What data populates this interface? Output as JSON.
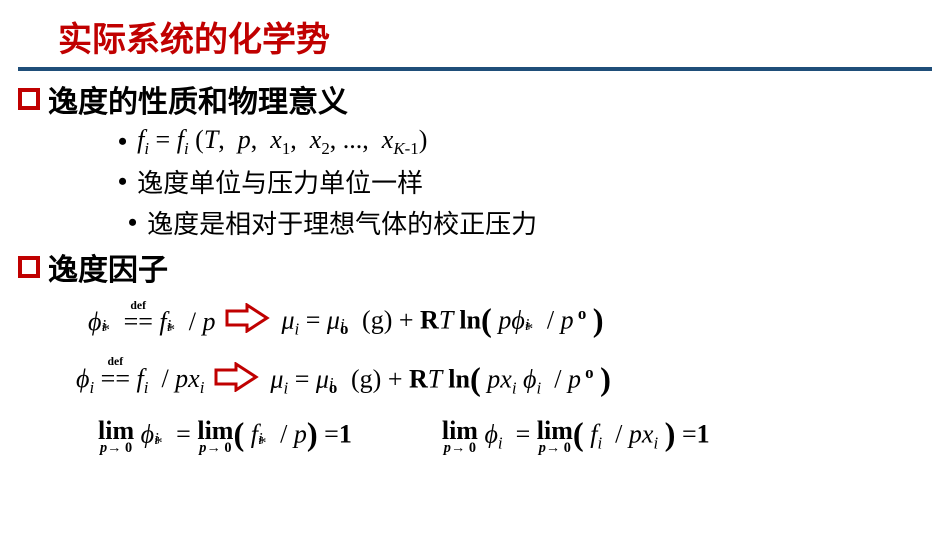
{
  "colors": {
    "title": "#c00000",
    "rule": "#1f4e79",
    "bullet_border": "#c00000",
    "text": "#000000",
    "arrow_stroke": "#c00000"
  },
  "title": "实际系统的化学势",
  "sections": [
    {
      "label": "逸度的性质和物理意义"
    },
    {
      "label": "逸度因子"
    }
  ],
  "items": [
    {
      "text_html": "<span class='math'>f<sub>i</sub> <span class='rm'>=</span> f<sub>i</sub> <span class='rm'>(</span>T<span class='rm'>,</span>&nbsp; p<span class='rm'>,</span>&nbsp; x<sub><span class='rm'>1</span></sub><span class='rm'>,</span>&nbsp; x<sub><span class='rm'>2</span></sub><span class='rm'>,</span>&nbsp;<span class='rm'>...,</span>&nbsp; x<sub>K<span class='rm'>-1</span></sub><span class='rm'>)</span></span>"
    },
    {
      "text": "逸度单位与压力单位一样"
    },
    {
      "text": "逸度是相对于理想气体的校正压力"
    }
  ],
  "formulas": {
    "row1_left": "ϕ<span class='subsup'><sub>i</sub><sup class='rm'>*</sup></span> <span class='eqdef'><span class='deflabel'>def</span><span class='rm'>==</span></span> f<span class='subsup'><sub>i</sub><sup class='rm'>*</sup></span> <span class='rm'>/</span> p",
    "row1_right": "μ<sub>i</sub> <span class='rm'>=</span> μ<span class='subsup'><sub>i</sub><sup class='supo'>o</sup></span> <span class='rm'>(g) +</span> <span class='rm' style='font-weight:bold'>R</span>T <span class='rm' style='font-weight:bold'>ln</span><span class='big'>(</span> pϕ<span class='subsup'><sub>i</sub><sup class='rm'>*</sup></span> <span class='rm'>/</span> p<sup class='supo'>&nbsp;o</sup> <span class='big'>)</span>",
    "row2_left": "ϕ<sub>i</sub> <span class='eqdef'><span class='deflabel'>def</span><span class='rm'>==</span></span> f<sub>i</sub>&nbsp; <span class='rm'>/</span> px<sub>i</sub>",
    "row2_right": "μ<sub>i</sub> <span class='rm'>=</span> μ<span class='subsup'><sub>i</sub><sup class='supo'>o</sup></span> <span class='rm'>(g) +</span> <span class='rm' style='font-weight:bold'>R</span>T <span class='rm' style='font-weight:bold'>ln</span><span class='big'>(</span> px<sub>i</sub> ϕ<sub>i</sub>&nbsp; <span class='rm'>/</span> p<sup class='supo'>&nbsp;o</sup> <span class='big'>)</span>",
    "lim1": "<span class='lim'><span class='top'>lim</span><span class='bot'><i>p</i>→ 0</span></span> ϕ<span class='subsup'><sub>i</sub><sup class='rm'>*</sup></span> <span class='rm'>=</span> <span class='lim'><span class='top'>lim</span><span class='bot'><i>p</i>→ 0</span></span><span class='big'>(</span> f<span class='subsup'><sub>i</sub><sup class='rm'>*</sup></span> <span class='rm'>/</span> p<span class='big'>)</span> <span class='rm'>=</span><span class='rm' style='font-weight:bold'>1</span>",
    "lim2": "<span class='lim'><span class='top'>lim</span><span class='bot'><i>p</i>→ 0</span></span> ϕ<sub>i</sub>&nbsp; <span class='rm'>=</span> <span class='lim'><span class='top'>lim</span><span class='bot'><i>p</i>→ 0</span></span><span class='big'>(</span> f<sub>i</sub> &nbsp;<span class='rm'>/</span> px<sub>i</sub> <span class='big'>)</span> <span class='rm'>=</span><span class='rm' style='font-weight:bold'>1</span>"
  },
  "arrow_svg": {
    "width": 46,
    "height": 30
  }
}
